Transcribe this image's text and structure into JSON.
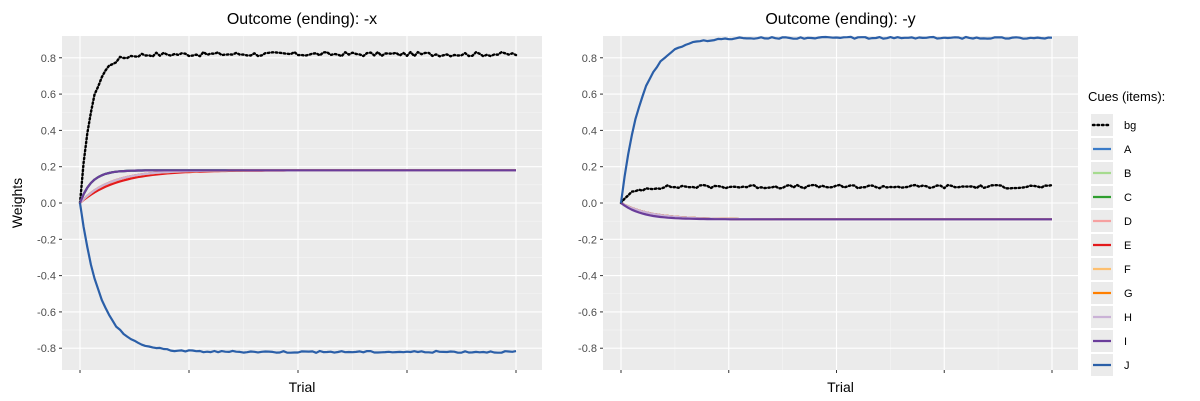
{
  "chart_data": [
    {
      "type": "line",
      "title": "Outcome (ending): -x",
      "xlabel": "Trial",
      "ylabel": "Weights",
      "ylim": [
        -0.92,
        0.92
      ],
      "yticks": [
        "0.8",
        "0.6",
        "0.4",
        "0.2",
        "0.0",
        "-0.2",
        "-0.4",
        "-0.6",
        "-0.8"
      ],
      "x_tick_labels": [],
      "grid": true,
      "series": [
        {
          "name": "bg",
          "final": 0.82,
          "shape": "fast",
          "noise": 0.012
        },
        {
          "name": "A",
          "final": 0.18,
          "shape": "fast"
        },
        {
          "name": "B",
          "final": 0.18,
          "shape": "slow"
        },
        {
          "name": "C",
          "final": 0.18,
          "shape": "fast"
        },
        {
          "name": "D",
          "final": 0.18,
          "shape": "slow"
        },
        {
          "name": "E",
          "final": 0.18,
          "shape": "slower"
        },
        {
          "name": "F",
          "final": 0.18,
          "shape": "slow"
        },
        {
          "name": "G",
          "final": 0.18,
          "shape": "slow"
        },
        {
          "name": "H",
          "final": 0.18,
          "shape": "slow"
        },
        {
          "name": "I",
          "final": 0.18,
          "shape": "fast"
        },
        {
          "name": "J",
          "final": -0.82,
          "shape": "medium",
          "noise": 0.005
        }
      ]
    },
    {
      "type": "line",
      "title": "Outcome (ending): -y",
      "xlabel": "Trial",
      "ylabel": "",
      "ylim": [
        -0.92,
        0.92
      ],
      "yticks": [
        "0.8",
        "0.6",
        "0.4",
        "0.2",
        "0.0",
        "-0.2",
        "-0.4",
        "-0.6",
        "-0.8"
      ],
      "x_tick_labels": [],
      "grid": true,
      "series": [
        {
          "name": "bg",
          "final": 0.09,
          "shape": "fast",
          "noise": 0.01
        },
        {
          "name": "A",
          "final": -0.09,
          "shape": "slow"
        },
        {
          "name": "B",
          "final": -0.09,
          "shape": "slow"
        },
        {
          "name": "C",
          "final": -0.09,
          "shape": "slow"
        },
        {
          "name": "D",
          "final": -0.09,
          "shape": "slow"
        },
        {
          "name": "E",
          "final": -0.09,
          "shape": "slow"
        },
        {
          "name": "F",
          "final": -0.09,
          "shape": "slow"
        },
        {
          "name": "G",
          "final": -0.09,
          "shape": "slow"
        },
        {
          "name": "H",
          "final": -0.09,
          "shape": "slow"
        },
        {
          "name": "I",
          "final": -0.09,
          "shape": "medium"
        },
        {
          "name": "J",
          "final": 0.91,
          "shape": "medium",
          "noise": 0.005
        }
      ]
    }
  ],
  "legend": {
    "title": "Cues (items):",
    "placement": "right",
    "items": [
      {
        "label": "bg",
        "color": "#000000",
        "dotted": true
      },
      {
        "label": "A",
        "color": "#3a7bc8"
      },
      {
        "label": "B",
        "color": "#a6db8f"
      },
      {
        "label": "C",
        "color": "#2f9e2f"
      },
      {
        "label": "D",
        "color": "#f6a0a0"
      },
      {
        "label": "E",
        "color": "#e31a1c"
      },
      {
        "label": "F",
        "color": "#fdbf6f"
      },
      {
        "label": "G",
        "color": "#ff7f00"
      },
      {
        "label": "H",
        "color": "#cab2d6"
      },
      {
        "label": "I",
        "color": "#6a3d9a"
      },
      {
        "label": "J",
        "color": "#2b5fa8"
      }
    ]
  },
  "colors": {
    "panel_background": "#ebebeb",
    "grid_major": "#ffffff",
    "grid_minor": "#f5f5f5"
  }
}
